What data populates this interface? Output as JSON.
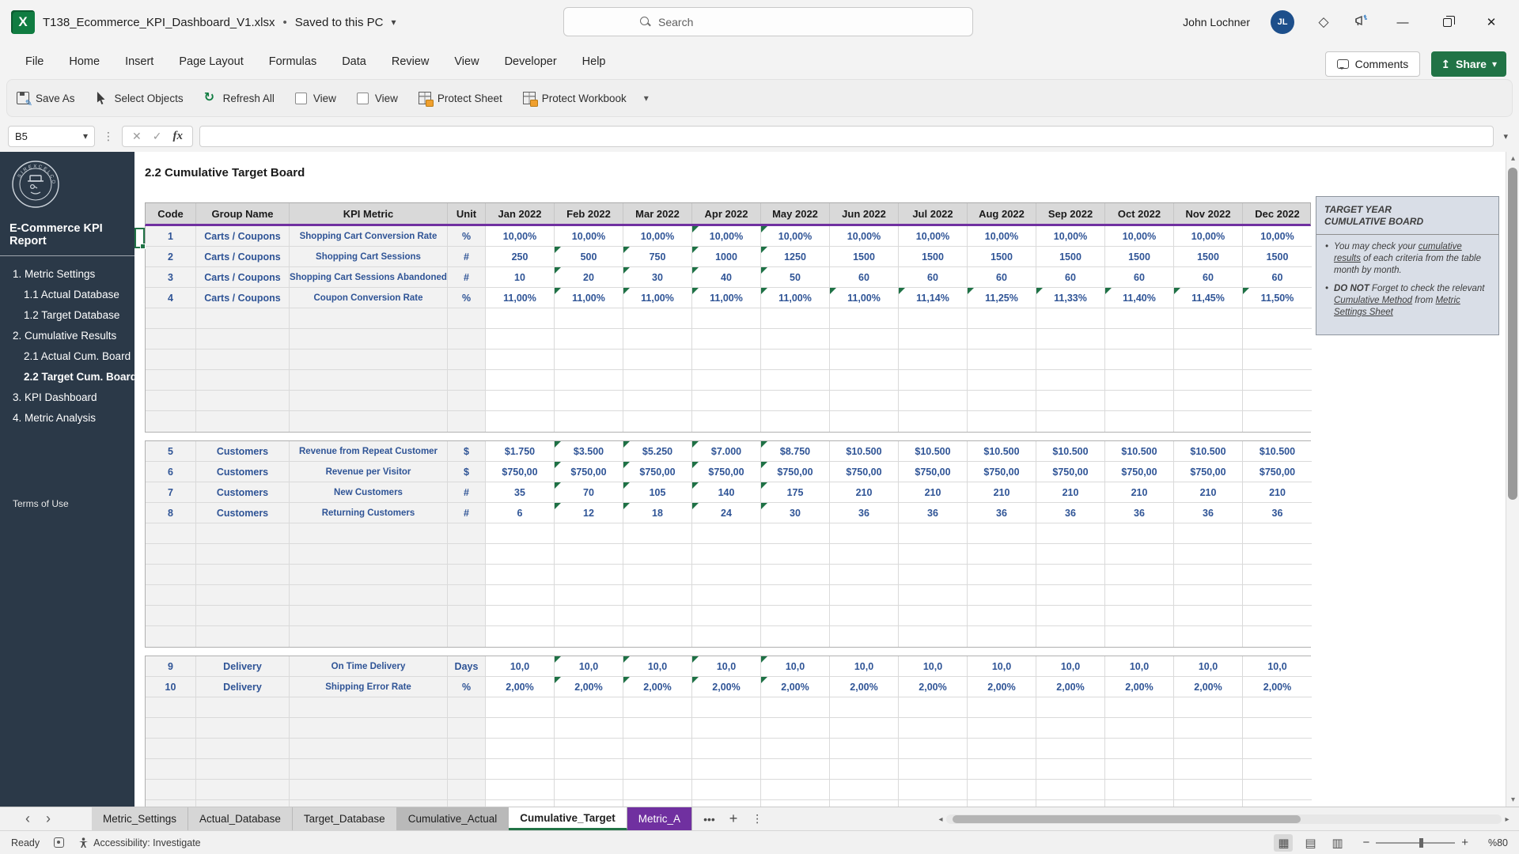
{
  "colors": {
    "accent_green": "#217346",
    "header_purple": "#7030A0",
    "data_navy": "#2F5496",
    "sidebar_bg": "#2B3948",
    "tab_purple": "#7030A0",
    "marker_green": "#1E7145",
    "avatar_blue": "#1D4F8B"
  },
  "title_bar": {
    "app_icon": "excel-icon",
    "file_name": "T138_Ecommerce_KPI_Dashboard_V1.xlsx",
    "separator": "•",
    "saved_status": "Saved to this PC",
    "search_placeholder": "Search",
    "user_name": "John Lochner",
    "user_initials": "JL"
  },
  "ribbon": {
    "tabs": [
      "File",
      "Home",
      "Insert",
      "Page Layout",
      "Formulas",
      "Data",
      "Review",
      "View",
      "Developer",
      "Help"
    ],
    "comments_label": "Comments",
    "share_label": "Share",
    "toolbar": {
      "items": [
        {
          "label": "Save As",
          "icon": "save"
        },
        {
          "label": "Select Objects",
          "icon": "cursor"
        },
        {
          "label": "Refresh All",
          "icon": "refresh"
        },
        {
          "label": "View",
          "icon": "checkbox"
        },
        {
          "label": "View",
          "icon": "checkbox"
        },
        {
          "label": "Protect Sheet",
          "icon": "grid-lock"
        },
        {
          "label": "Protect Workbook",
          "icon": "grid-lock"
        }
      ]
    }
  },
  "formula_bar": {
    "name_box": "B5"
  },
  "sidebar": {
    "logo_text": "SIREXCELCO",
    "report_title": "E-Commerce KPI Report",
    "items": [
      {
        "label": "1. Metric Settings",
        "level": 1,
        "active": false
      },
      {
        "label": "1.1 Actual Database",
        "level": 2,
        "active": false
      },
      {
        "label": "1.2 Target Database",
        "level": 2,
        "active": false
      },
      {
        "label": "2. Cumulative Results",
        "level": 1,
        "active": false
      },
      {
        "label": "2.1 Actual Cum. Board",
        "level": 2,
        "active": false
      },
      {
        "label": "2.2 Target Cum. Board",
        "level": 2,
        "active": true
      },
      {
        "label": "3. KPI Dashboard",
        "level": 1,
        "active": false
      },
      {
        "label": "4. Metric Analysis",
        "level": 1,
        "active": false
      }
    ],
    "terms_label": "Terms of Use"
  },
  "sheet": {
    "page_title": "2.2 Cumulative Target Board",
    "table": {
      "headers": [
        "Code",
        "Group Name",
        "KPI Metric",
        "Unit",
        "Jan 2022",
        "Feb 2022",
        "Mar 2022",
        "Apr 2022",
        "May 2022",
        "Jun 2022",
        "Jul 2022",
        "Aug 2022",
        "Sep 2022",
        "Oct 2022",
        "Nov 2022",
        "Dec 2022"
      ],
      "blocks": [
        {
          "empty_rows": 6,
          "rows": [
            {
              "code": "1",
              "group": "Carts / Coupons",
              "metric": "Shopping Cart Conversion Rate",
              "unit": "%",
              "values": [
                "10,00%",
                "10,00%",
                "10,00%",
                "10,00%",
                "10,00%",
                "10,00%",
                "10,00%",
                "10,00%",
                "10,00%",
                "10,00%",
                "10,00%",
                "10,00%"
              ],
              "markers": [
                3,
                4
              ]
            },
            {
              "code": "2",
              "group": "Carts / Coupons",
              "metric": "Shopping Cart Sessions",
              "unit": "#",
              "values": [
                "250",
                "500",
                "750",
                "1000",
                "1250",
                "1500",
                "1500",
                "1500",
                "1500",
                "1500",
                "1500",
                "1500"
              ],
              "markers": [
                1,
                2,
                3,
                4
              ]
            },
            {
              "code": "3",
              "group": "Carts / Coupons",
              "metric": "Shopping Cart Sessions Abandoned",
              "unit": "#",
              "values": [
                "10",
                "20",
                "30",
                "40",
                "50",
                "60",
                "60",
                "60",
                "60",
                "60",
                "60",
                "60"
              ],
              "markers": [
                1,
                2,
                3,
                4
              ]
            },
            {
              "code": "4",
              "group": "Carts / Coupons",
              "metric": "Coupon Conversion Rate",
              "unit": "%",
              "values": [
                "11,00%",
                "11,00%",
                "11,00%",
                "11,00%",
                "11,00%",
                "11,00%",
                "11,14%",
                "11,25%",
                "11,33%",
                "11,40%",
                "11,45%",
                "11,50%"
              ],
              "markers": [
                1,
                2,
                3,
                4,
                5,
                6,
                7,
                8,
                9,
                10,
                11
              ]
            }
          ]
        },
        {
          "empty_rows": 6,
          "rows": [
            {
              "code": "5",
              "group": "Customers",
              "metric": "Revenue from Repeat Customer",
              "unit": "$",
              "values": [
                "$1.750",
                "$3.500",
                "$5.250",
                "$7.000",
                "$8.750",
                "$10.500",
                "$10.500",
                "$10.500",
                "$10.500",
                "$10.500",
                "$10.500",
                "$10.500"
              ],
              "markers": [
                1,
                2,
                3,
                4
              ]
            },
            {
              "code": "6",
              "group": "Customers",
              "metric": "Revenue per Visitor",
              "unit": "$",
              "values": [
                "$750,00",
                "$750,00",
                "$750,00",
                "$750,00",
                "$750,00",
                "$750,00",
                "$750,00",
                "$750,00",
                "$750,00",
                "$750,00",
                "$750,00",
                "$750,00"
              ],
              "markers": [
                1,
                2,
                3,
                4
              ]
            },
            {
              "code": "7",
              "group": "Customers",
              "metric": "New Customers",
              "unit": "#",
              "values": [
                "35",
                "70",
                "105",
                "140",
                "175",
                "210",
                "210",
                "210",
                "210",
                "210",
                "210",
                "210"
              ],
              "markers": [
                1,
                2,
                3,
                4
              ]
            },
            {
              "code": "8",
              "group": "Customers",
              "metric": "Returning Customers",
              "unit": "#",
              "values": [
                "6",
                "12",
                "18",
                "24",
                "30",
                "36",
                "36",
                "36",
                "36",
                "36",
                "36",
                "36"
              ],
              "markers": [
                1,
                2,
                3,
                4
              ]
            }
          ]
        },
        {
          "empty_rows": 6,
          "rows": [
            {
              "code": "9",
              "group": "Delivery",
              "metric": "On Time Delivery",
              "unit": "Days",
              "values": [
                "10,0",
                "10,0",
                "10,0",
                "10,0",
                "10,0",
                "10,0",
                "10,0",
                "10,0",
                "10,0",
                "10,0",
                "10,0",
                "10,0"
              ],
              "markers": [
                1,
                2,
                3,
                4
              ]
            },
            {
              "code": "10",
              "group": "Delivery",
              "metric": "Shipping Error Rate",
              "unit": "%",
              "values": [
                "2,00%",
                "2,00%",
                "2,00%",
                "2,00%",
                "2,00%",
                "2,00%",
                "2,00%",
                "2,00%",
                "2,00%",
                "2,00%",
                "2,00%",
                "2,00%"
              ],
              "markers": [
                1,
                2,
                3,
                4
              ]
            }
          ]
        }
      ]
    },
    "note": {
      "title_line1": "TARGET YEAR",
      "title_line2": "CUMULATIVE BOARD",
      "bullets": [
        {
          "segments": [
            {
              "t": "You may check your "
            },
            {
              "t": "cumulative results",
              "u": true
            },
            {
              "t": " of each criteria from the table month by month."
            }
          ]
        },
        {
          "segments": [
            {
              "t": "DO NOT ",
              "b": true
            },
            {
              "t": "Forget to check the relevant "
            },
            {
              "t": "Cumulative Method",
              "u": true
            },
            {
              "t": " from "
            },
            {
              "t": "Metric Settings Sheet",
              "u": true
            }
          ]
        }
      ]
    }
  },
  "sheet_tabs": {
    "tabs": [
      {
        "label": "Metric_Settings",
        "variant": "normal"
      },
      {
        "label": "Actual_Database",
        "variant": "normal"
      },
      {
        "label": "Target_Database",
        "variant": "normal"
      },
      {
        "label": "Cumulative_Actual",
        "variant": "shaded"
      },
      {
        "label": "Cumulative_Target",
        "variant": "active"
      },
      {
        "label": "Metric_A",
        "variant": "purple"
      }
    ],
    "more_label": "•••",
    "add_label": "+",
    "menu_label": "⋮"
  },
  "status_bar": {
    "ready_label": "Ready",
    "accessibility_label": "Accessibility: Investigate",
    "zoom_label": "%80"
  }
}
